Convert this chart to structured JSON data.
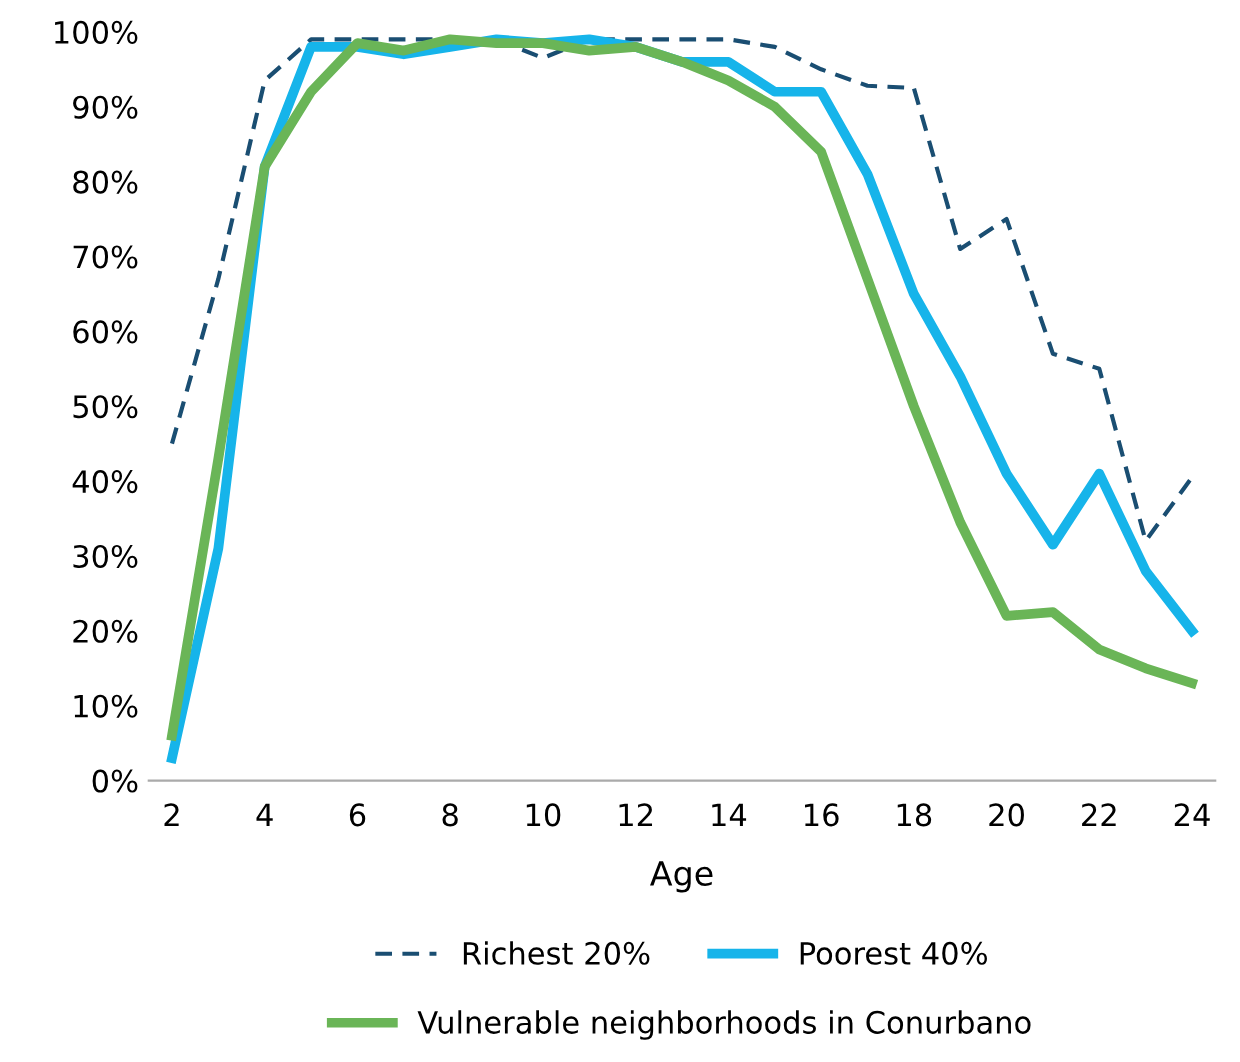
{
  "chart_data": {
    "type": "line",
    "xlabel": "Age",
    "x": [
      2,
      3,
      4,
      5,
      6,
      7,
      8,
      9,
      10,
      11,
      12,
      13,
      14,
      15,
      16,
      17,
      18,
      19,
      20,
      21,
      22,
      23,
      24
    ],
    "series": [
      {
        "name": "Richest 20%",
        "color": "#1a4e72",
        "line_style": "dashed",
        "values": [
          45,
          67,
          93.5,
          99,
          99,
          99,
          99,
          99,
          96.5,
          99,
          99,
          99,
          99,
          98,
          95,
          92.8,
          92.5,
          71,
          75,
          57,
          55,
          32,
          40.5
        ]
      },
      {
        "name": "Poorest 40%",
        "color": "#16b4ea",
        "line_style": "solid",
        "values": [
          3,
          31,
          82,
          98,
          98,
          97,
          98,
          99,
          98.5,
          99,
          98,
          96,
          96,
          92,
          92,
          81,
          65,
          54,
          41,
          31.5,
          41,
          28,
          20
        ]
      },
      {
        "name": "Vulnerable neighborhoods in Conurbano",
        "color": "#6ab557",
        "line_style": "solid",
        "values": [
          6,
          43,
          82,
          92,
          98.5,
          97.5,
          99,
          98.5,
          98.5,
          97.5,
          98,
          96,
          93.5,
          90,
          84,
          67,
          50,
          34.5,
          22,
          22.5,
          17.5,
          15,
          13
        ]
      }
    ],
    "xlim": [
      1.5,
      24.5
    ],
    "xticks": [
      2,
      4,
      6,
      8,
      10,
      12,
      14,
      16,
      18,
      20,
      22,
      24
    ],
    "ylim": [
      0,
      100
    ],
    "yticks": [
      {
        "value": 0,
        "label": "0%"
      },
      {
        "value": 10,
        "label": "10%"
      },
      {
        "value": 20,
        "label": "20%"
      },
      {
        "value": 30,
        "label": "30%"
      },
      {
        "value": 40,
        "label": "40%"
      },
      {
        "value": 50,
        "label": "50%"
      },
      {
        "value": 60,
        "label": "60%"
      },
      {
        "value": 70,
        "label": "70%"
      },
      {
        "value": 80,
        "label": "80%"
      },
      {
        "value": 90,
        "label": "90%"
      },
      {
        "value": 100,
        "label": "100%"
      }
    ],
    "grid": false,
    "legend": "bottom"
  }
}
